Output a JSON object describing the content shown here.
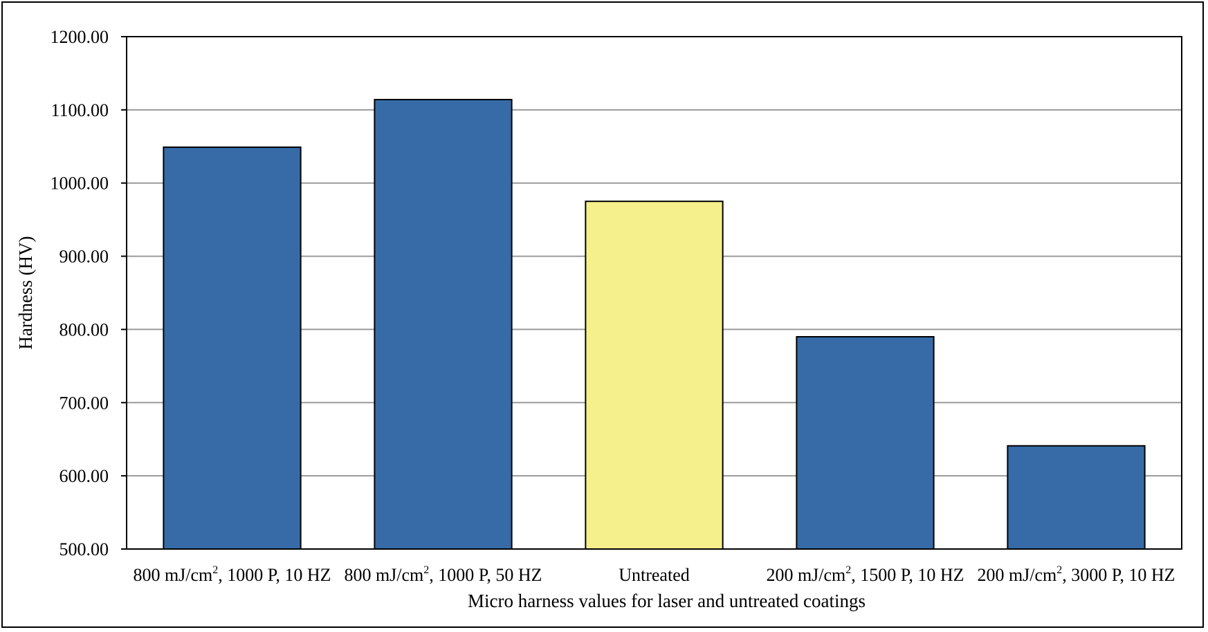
{
  "chart_data": {
    "type": "bar",
    "xlabel": "Micro harness values for laser and untreated coatings",
    "ylabel": "Hardness (HV)",
    "ylim": [
      500,
      1200
    ],
    "yticks": [
      "500.00",
      "600.00",
      "700.00",
      "800.00",
      "900.00",
      "1000.00",
      "1100.00",
      "1200.00"
    ],
    "grid": "horizontal",
    "legend": "none",
    "categories": [
      {
        "pre": "800 mJ/cm",
        "sup": "2",
        "post": ", 1000 P, 10 HZ"
      },
      {
        "pre": "800 mJ/cm",
        "sup": "2",
        "post": ", 1000 P, 50 HZ"
      },
      {
        "pre": "Untreated",
        "sup": "",
        "post": ""
      },
      {
        "pre": "200 mJ/cm",
        "sup": "2",
        "post": ", 1500 P, 10 HZ"
      },
      {
        "pre": "200 mJ/cm",
        "sup": "2",
        "post": ", 3000 P, 10 HZ"
      }
    ],
    "values": [
      1049,
      1114,
      975,
      790,
      641
    ],
    "colors": [
      "#366ba7",
      "#366ba7",
      "#f5f08c",
      "#366ba7",
      "#366ba7"
    ]
  }
}
